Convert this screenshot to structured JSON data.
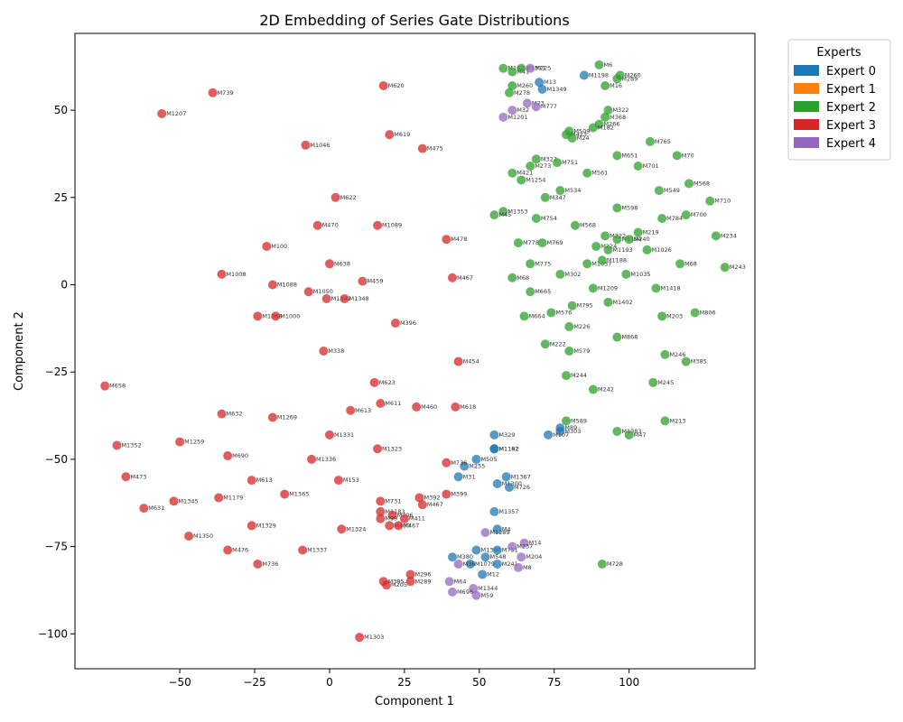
{
  "chart_data": {
    "type": "scatter",
    "title": "2D Embedding of Series Gate Distributions",
    "xlabel": "Component 1",
    "ylabel": "Component 2",
    "xlim": [
      -85,
      142
    ],
    "ylim": [
      -110,
      72
    ],
    "xticks": [
      -50,
      -25,
      0,
      25,
      50,
      75,
      100
    ],
    "yticks": [
      50,
      25,
      0,
      -25,
      -50,
      -75,
      -100
    ],
    "grid": false,
    "legend": {
      "title": "Experts",
      "position": "outside-top-right",
      "entries": [
        {
          "label": "Expert 0",
          "color": "#1f77b4"
        },
        {
          "label": "Expert 1",
          "color": "#ff7f0e"
        },
        {
          "label": "Expert 2",
          "color": "#2ca02c"
        },
        {
          "label": "Expert 3",
          "color": "#d62728"
        },
        {
          "label": "Expert 4",
          "color": "#9467bd"
        }
      ]
    },
    "series": [
      {
        "name": "Expert 0",
        "color": "#1f77b4",
        "points": [
          {
            "x": 85,
            "y": 60,
            "label": "M1198"
          },
          {
            "x": 70,
            "y": 58,
            "label": "M13"
          },
          {
            "x": 71,
            "y": 56,
            "label": "M1349"
          },
          {
            "x": 55,
            "y": -43,
            "label": "M329"
          },
          {
            "x": 55,
            "y": -47,
            "label": "M1197"
          },
          {
            "x": 55,
            "y": -47,
            "label": "M1182"
          },
          {
            "x": 49,
            "y": -50,
            "label": "M505"
          },
          {
            "x": 45,
            "y": -52,
            "label": "M255"
          },
          {
            "x": 43,
            "y": -55,
            "label": "M31"
          },
          {
            "x": 59,
            "y": -55,
            "label": "M1367"
          },
          {
            "x": 56,
            "y": -57,
            "label": "M1300"
          },
          {
            "x": 60,
            "y": -58,
            "label": "M726"
          },
          {
            "x": 77,
            "y": -41,
            "label": "M89"
          },
          {
            "x": 77,
            "y": -42,
            "label": "M303"
          },
          {
            "x": 73,
            "y": -43,
            "label": "M107"
          },
          {
            "x": 55,
            "y": -65,
            "label": "M1357"
          },
          {
            "x": 56,
            "y": -70,
            "label": "M4"
          },
          {
            "x": 49,
            "y": -76,
            "label": "M1340"
          },
          {
            "x": 52,
            "y": -78,
            "label": "M548"
          },
          {
            "x": 56,
            "y": -76,
            "label": "M751"
          },
          {
            "x": 41,
            "y": -78,
            "label": "M380"
          },
          {
            "x": 47,
            "y": -80,
            "label": "M1079"
          },
          {
            "x": 56,
            "y": -80,
            "label": "M241"
          },
          {
            "x": 51,
            "y": -83,
            "label": "M12"
          }
        ]
      },
      {
        "name": "Expert 2",
        "color": "#2ca02c",
        "points": [
          {
            "x": 58,
            "y": 62,
            "label": "M162"
          },
          {
            "x": 61,
            "y": 61,
            "label": "M41"
          },
          {
            "x": 64,
            "y": 62,
            "label": "M1371"
          },
          {
            "x": 90,
            "y": 63,
            "label": "M6"
          },
          {
            "x": 96,
            "y": 59,
            "label": "M289"
          },
          {
            "x": 97,
            "y": 60,
            "label": "M260"
          },
          {
            "x": 92,
            "y": 57,
            "label": "M16"
          },
          {
            "x": 61,
            "y": 57,
            "label": "M260"
          },
          {
            "x": 60,
            "y": 55,
            "label": "M278"
          },
          {
            "x": 93,
            "y": 50,
            "label": "M322"
          },
          {
            "x": 92,
            "y": 48,
            "label": "M368"
          },
          {
            "x": 90,
            "y": 46,
            "label": "M266"
          },
          {
            "x": 88,
            "y": 45,
            "label": "M182"
          },
          {
            "x": 80,
            "y": 44,
            "label": "M509"
          },
          {
            "x": 79,
            "y": 43,
            "label": "M423"
          },
          {
            "x": 81,
            "y": 42,
            "label": "M24"
          },
          {
            "x": 107,
            "y": 41,
            "label": "M765"
          },
          {
            "x": 96,
            "y": 37,
            "label": "M651"
          },
          {
            "x": 116,
            "y": 37,
            "label": "M70"
          },
          {
            "x": 69,
            "y": 36,
            "label": "M327"
          },
          {
            "x": 67,
            "y": 34,
            "label": "M273"
          },
          {
            "x": 76,
            "y": 35,
            "label": "M751"
          },
          {
            "x": 103,
            "y": 34,
            "label": "M701"
          },
          {
            "x": 61,
            "y": 32,
            "label": "M421"
          },
          {
            "x": 64,
            "y": 30,
            "label": "M1254"
          },
          {
            "x": 86,
            "y": 32,
            "label": "M561"
          },
          {
            "x": 120,
            "y": 29,
            "label": "M568"
          },
          {
            "x": 77,
            "y": 27,
            "label": "M534"
          },
          {
            "x": 110,
            "y": 27,
            "label": "M549"
          },
          {
            "x": 72,
            "y": 25,
            "label": "M347"
          },
          {
            "x": 127,
            "y": 24,
            "label": "M710"
          },
          {
            "x": 96,
            "y": 22,
            "label": "M598"
          },
          {
            "x": 58,
            "y": 21,
            "label": "M1353"
          },
          {
            "x": 55,
            "y": 20,
            "label": "M45"
          },
          {
            "x": 69,
            "y": 19,
            "label": "M754"
          },
          {
            "x": 111,
            "y": 19,
            "label": "M784"
          },
          {
            "x": 119,
            "y": 20,
            "label": "M700"
          },
          {
            "x": 82,
            "y": 17,
            "label": "M568"
          },
          {
            "x": 103,
            "y": 15,
            "label": "M219"
          },
          {
            "x": 92,
            "y": 14,
            "label": "M222"
          },
          {
            "x": 96,
            "y": 13,
            "label": "M1194"
          },
          {
            "x": 100,
            "y": 13,
            "label": "M240"
          },
          {
            "x": 129,
            "y": 14,
            "label": "M234"
          },
          {
            "x": 63,
            "y": 12,
            "label": "M778"
          },
          {
            "x": 71,
            "y": 12,
            "label": "M769"
          },
          {
            "x": 89,
            "y": 11,
            "label": "M224"
          },
          {
            "x": 93,
            "y": 10,
            "label": "M1193"
          },
          {
            "x": 106,
            "y": 10,
            "label": "M1026"
          },
          {
            "x": 117,
            "y": 6,
            "label": "M68"
          },
          {
            "x": 67,
            "y": 6,
            "label": "M775"
          },
          {
            "x": 86,
            "y": 6,
            "label": "M1037"
          },
          {
            "x": 91,
            "y": 7,
            "label": "M1188"
          },
          {
            "x": 132,
            "y": 5,
            "label": "M243"
          },
          {
            "x": 77,
            "y": 3,
            "label": "M302"
          },
          {
            "x": 99,
            "y": 3,
            "label": "M1035"
          },
          {
            "x": 61,
            "y": 2,
            "label": "M68"
          },
          {
            "x": 88,
            "y": -1,
            "label": "M1209"
          },
          {
            "x": 109,
            "y": -1,
            "label": "M1418"
          },
          {
            "x": 67,
            "y": -2,
            "label": "M665"
          },
          {
            "x": 93,
            "y": -5,
            "label": "M1402"
          },
          {
            "x": 81,
            "y": -6,
            "label": "M795"
          },
          {
            "x": 74,
            "y": -8,
            "label": "M576"
          },
          {
            "x": 111,
            "y": -9,
            "label": "M203"
          },
          {
            "x": 122,
            "y": -8,
            "label": "M806"
          },
          {
            "x": 65,
            "y": -9,
            "label": "M664"
          },
          {
            "x": 80,
            "y": -12,
            "label": "M226"
          },
          {
            "x": 96,
            "y": -15,
            "label": "M868"
          },
          {
            "x": 72,
            "y": -17,
            "label": "M222"
          },
          {
            "x": 80,
            "y": -19,
            "label": "M579"
          },
          {
            "x": 112,
            "y": -20,
            "label": "M246"
          },
          {
            "x": 119,
            "y": -22,
            "label": "M385"
          },
          {
            "x": 79,
            "y": -26,
            "label": "M244"
          },
          {
            "x": 108,
            "y": -28,
            "label": "M245"
          },
          {
            "x": 88,
            "y": -30,
            "label": "M242"
          },
          {
            "x": 79,
            "y": -39,
            "label": "M589"
          },
          {
            "x": 112,
            "y": -39,
            "label": "M213"
          },
          {
            "x": 96,
            "y": -42,
            "label": "M1383"
          },
          {
            "x": 100,
            "y": -43,
            "label": "M47"
          },
          {
            "x": 91,
            "y": -80,
            "label": "M728"
          }
        ]
      },
      {
        "name": "Expert 3",
        "color": "#d62728",
        "points": [
          {
            "x": -39,
            "y": 55,
            "label": "M739"
          },
          {
            "x": 18,
            "y": 57,
            "label": "M620"
          },
          {
            "x": -56,
            "y": 49,
            "label": "M1207"
          },
          {
            "x": 20,
            "y": 43,
            "label": "M619"
          },
          {
            "x": -8,
            "y": 40,
            "label": "M1046"
          },
          {
            "x": 31,
            "y": 39,
            "label": "M475"
          },
          {
            "x": 2,
            "y": 25,
            "label": "M622"
          },
          {
            "x": -4,
            "y": 17,
            "label": "M470"
          },
          {
            "x": 16,
            "y": 17,
            "label": "M1089"
          },
          {
            "x": -21,
            "y": 11,
            "label": "M100"
          },
          {
            "x": 39,
            "y": 13,
            "label": "M478"
          },
          {
            "x": 0,
            "y": 6,
            "label": "M638"
          },
          {
            "x": -36,
            "y": 3,
            "label": "M1008"
          },
          {
            "x": -19,
            "y": 0,
            "label": "M1088"
          },
          {
            "x": 11,
            "y": 1,
            "label": "M459"
          },
          {
            "x": 41,
            "y": 2,
            "label": "M467"
          },
          {
            "x": -7,
            "y": -2,
            "label": "M1050"
          },
          {
            "x": -1,
            "y": -4,
            "label": "M1342"
          },
          {
            "x": 5,
            "y": -4,
            "label": "M1348"
          },
          {
            "x": -24,
            "y": -9,
            "label": "M1068"
          },
          {
            "x": -18,
            "y": -9,
            "label": "M1000"
          },
          {
            "x": 22,
            "y": -11,
            "label": "M396"
          },
          {
            "x": -2,
            "y": -19,
            "label": "M338"
          },
          {
            "x": 43,
            "y": -22,
            "label": "M454"
          },
          {
            "x": -75,
            "y": -29,
            "label": "M658"
          },
          {
            "x": 15,
            "y": -28,
            "label": "M623"
          },
          {
            "x": 17,
            "y": -34,
            "label": "M611"
          },
          {
            "x": 29,
            "y": -35,
            "label": "M460"
          },
          {
            "x": 42,
            "y": -35,
            "label": "M618"
          },
          {
            "x": -36,
            "y": -37,
            "label": "M632"
          },
          {
            "x": 7,
            "y": -36,
            "label": "M613"
          },
          {
            "x": -19,
            "y": -38,
            "label": "M1269"
          },
          {
            "x": 0,
            "y": -43,
            "label": "M1331"
          },
          {
            "x": -71,
            "y": -46,
            "label": "M1352"
          },
          {
            "x": -50,
            "y": -45,
            "label": "M1259"
          },
          {
            "x": 16,
            "y": -47,
            "label": "M1323"
          },
          {
            "x": -34,
            "y": -49,
            "label": "M690"
          },
          {
            "x": -6,
            "y": -50,
            "label": "M1336"
          },
          {
            "x": 39,
            "y": -51,
            "label": "M736"
          },
          {
            "x": -68,
            "y": -55,
            "label": "M473"
          },
          {
            "x": -26,
            "y": -56,
            "label": "M613"
          },
          {
            "x": 3,
            "y": -56,
            "label": "M153"
          },
          {
            "x": -15,
            "y": -60,
            "label": "M1365"
          },
          {
            "x": -37,
            "y": -61,
            "label": "M1179"
          },
          {
            "x": -52,
            "y": -62,
            "label": "M1345"
          },
          {
            "x": -62,
            "y": -64,
            "label": "M631"
          },
          {
            "x": 17,
            "y": -62,
            "label": "M731"
          },
          {
            "x": 30,
            "y": -61,
            "label": "M392"
          },
          {
            "x": 39,
            "y": -60,
            "label": "M399"
          },
          {
            "x": 31,
            "y": -63,
            "label": "M467"
          },
          {
            "x": 17,
            "y": -65,
            "label": "M1183"
          },
          {
            "x": 21,
            "y": -66,
            "label": "M706"
          },
          {
            "x": 17,
            "y": -67,
            "label": "M99"
          },
          {
            "x": 25,
            "y": -67,
            "label": "M411"
          },
          {
            "x": 20,
            "y": -69,
            "label": "M400"
          },
          {
            "x": 23,
            "y": -69,
            "label": "M467"
          },
          {
            "x": -26,
            "y": -69,
            "label": "M1329"
          },
          {
            "x": 4,
            "y": -70,
            "label": "M1324"
          },
          {
            "x": -47,
            "y": -72,
            "label": "M1350"
          },
          {
            "x": -9,
            "y": -76,
            "label": "M1337"
          },
          {
            "x": -34,
            "y": -76,
            "label": "M476"
          },
          {
            "x": -24,
            "y": -80,
            "label": "M736"
          },
          {
            "x": 27,
            "y": -83,
            "label": "M296"
          },
          {
            "x": 27,
            "y": -85,
            "label": "M289"
          },
          {
            "x": 18,
            "y": -85,
            "label": "M395"
          },
          {
            "x": 19,
            "y": -86,
            "label": "M205"
          },
          {
            "x": 10,
            "y": -101,
            "label": "M1303"
          }
        ]
      },
      {
        "name": "Expert 4",
        "color": "#9467bd",
        "points": [
          {
            "x": 67,
            "y": 62,
            "label": "M225"
          },
          {
            "x": 66,
            "y": 52,
            "label": "M23"
          },
          {
            "x": 69,
            "y": 51,
            "label": "M777"
          },
          {
            "x": 61,
            "y": 50,
            "label": "M32"
          },
          {
            "x": 58,
            "y": 48,
            "label": "M1201"
          },
          {
            "x": 52,
            "y": -71,
            "label": "M1289"
          },
          {
            "x": 65,
            "y": -74,
            "label": "M14"
          },
          {
            "x": 61,
            "y": -75,
            "label": "M237"
          },
          {
            "x": 64,
            "y": -78,
            "label": "M204"
          },
          {
            "x": 43,
            "y": -80,
            "label": "M36"
          },
          {
            "x": 63,
            "y": -81,
            "label": "M8"
          },
          {
            "x": 40,
            "y": -85,
            "label": "M64"
          },
          {
            "x": 48,
            "y": -87,
            "label": "M1344"
          },
          {
            "x": 41,
            "y": -88,
            "label": "M696"
          },
          {
            "x": 49,
            "y": -89,
            "label": "M59"
          }
        ]
      }
    ]
  }
}
